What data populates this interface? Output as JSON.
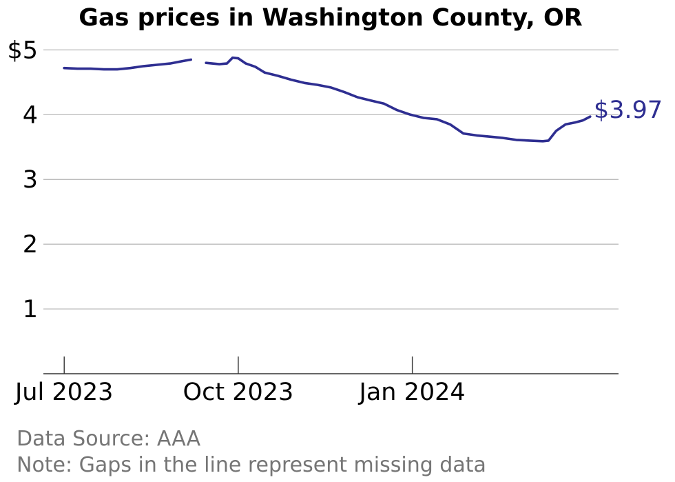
{
  "chart_data": {
    "type": "line",
    "title": "Gas prices in Washington County, OR",
    "xlabel": "",
    "ylabel": "",
    "y_tick_labels": [
      "1",
      "2",
      "3",
      "4",
      "$5"
    ],
    "y_tick_values": [
      1,
      2,
      3,
      4,
      5
    ],
    "ylim": [
      0,
      5.1
    ],
    "x_tick_labels": [
      "Jul 2023",
      "Oct 2023",
      "Jan 2024"
    ],
    "x_tick_dates": [
      "2023-07-01",
      "2023-10-01",
      "2024-01-01"
    ],
    "xlim": [
      "2023-06-20",
      "2024-04-19"
    ],
    "grid": "horizontal",
    "line_color": "#2e2e91",
    "end_label": "$3.97",
    "series": [
      {
        "segments": [
          {
            "dates": [
              "2023-07-01",
              "2023-07-08",
              "2023-07-15",
              "2023-07-22",
              "2023-07-29",
              "2023-08-05",
              "2023-08-12",
              "2023-08-19",
              "2023-08-26",
              "2023-09-02",
              "2023-09-06"
            ],
            "values": [
              4.72,
              4.71,
              4.71,
              4.7,
              4.7,
              4.72,
              4.75,
              4.77,
              4.79,
              4.83,
              4.85
            ]
          },
          {
            "dates": [
              "2023-09-14",
              "2023-09-21",
              "2023-09-25",
              "2023-09-28",
              "2023-10-01",
              "2023-10-05",
              "2023-10-10",
              "2023-10-15",
              "2023-10-22",
              "2023-10-29",
              "2023-11-05",
              "2023-11-12",
              "2023-11-19",
              "2023-11-26",
              "2023-12-03",
              "2023-12-10",
              "2023-12-17",
              "2023-12-24",
              "2023-12-31",
              "2024-01-07",
              "2024-01-14",
              "2024-01-21",
              "2024-01-28",
              "2024-02-04",
              "2024-02-11",
              "2024-02-18",
              "2024-02-25",
              "2024-03-03",
              "2024-03-10",
              "2024-03-13",
              "2024-03-17",
              "2024-03-22",
              "2024-03-27",
              "2024-03-31",
              "2024-04-04"
            ],
            "values": [
              4.8,
              4.78,
              4.79,
              4.88,
              4.87,
              4.79,
              4.74,
              4.65,
              4.6,
              4.54,
              4.49,
              4.46,
              4.42,
              4.35,
              4.27,
              4.22,
              4.17,
              4.07,
              4.0,
              3.95,
              3.93,
              3.85,
              3.71,
              3.68,
              3.66,
              3.64,
              3.61,
              3.6,
              3.59,
              3.6,
              3.75,
              3.85,
              3.88,
              3.91,
              3.97
            ]
          }
        ]
      }
    ]
  },
  "footnotes": {
    "source": "Data Source: AAA",
    "note": "Note: Gaps in the line represent missing data"
  }
}
